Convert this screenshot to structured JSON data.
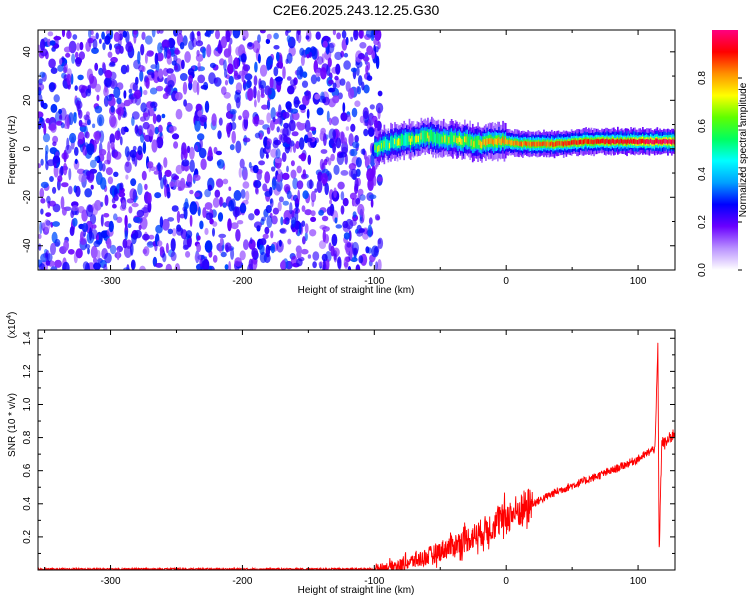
{
  "figure_title": "C2E6.2025.243.12.25.G30",
  "chart_data": [
    {
      "type": "heatmap",
      "title": "C2E6.2025.243.12.25.G30",
      "xlabel": "Height of straight line (km)",
      "ylabel": "Frequency (Hz)",
      "xlim": [
        -355,
        128
      ],
      "ylim": [
        -50,
        49
      ],
      "xticks": [
        -300,
        -200,
        -100,
        0,
        100
      ],
      "yticks": [
        -40,
        -20,
        0,
        20,
        40
      ],
      "grid": false,
      "regions": [
        {
          "x_range": [
            -355,
            -100
          ],
          "description": "random noise at low amplitude (0.1-0.3) over all frequencies"
        },
        {
          "x_range": [
            -100,
            128
          ],
          "description": "narrow band near 0-4 Hz, amplitude rising to ~0.9"
        }
      ],
      "band_center_hz": [
        {
          "x": -100,
          "y": 0
        },
        {
          "x": -90,
          "y": 2
        },
        {
          "x": -80,
          "y": 3
        },
        {
          "x": -70,
          "y": 4
        },
        {
          "x": -60,
          "y": 5
        },
        {
          "x": -50,
          "y": 4
        },
        {
          "x": -40,
          "y": 4
        },
        {
          "x": -30,
          "y": 3
        },
        {
          "x": -20,
          "y": 2
        },
        {
          "x": -10,
          "y": 3
        },
        {
          "x": 0,
          "y": 3
        },
        {
          "x": 10,
          "y": 2
        },
        {
          "x": 20,
          "y": 2
        },
        {
          "x": 40,
          "y": 2
        },
        {
          "x": 60,
          "y": 3
        },
        {
          "x": 80,
          "y": 3
        },
        {
          "x": 100,
          "y": 3
        },
        {
          "x": 128,
          "y": 3
        }
      ],
      "colorbar": {
        "label": "Normalized spectral amplitude",
        "range": [
          0,
          1
        ],
        "ticks": [
          0.0,
          0.2,
          0.4,
          0.6,
          0.8
        ],
        "colors": [
          "#ffffff",
          "#b991ff",
          "#6a00ff",
          "#0000ff",
          "#00a0ff",
          "#00ffff",
          "#00ff60",
          "#60ff00",
          "#ffff00",
          "#ff9000",
          "#ff0000",
          "#ff0080"
        ]
      }
    },
    {
      "type": "line",
      "xlabel": "Height of straight line (km)",
      "ylabel": "SNR (10 * v/v)",
      "y_multiplier": "(x10",
      "y_multiplier_exp": "4",
      "y_multiplier_close": ")",
      "xlim": [
        -355,
        128
      ],
      "ylim": [
        0,
        1.45
      ],
      "xticks": [
        -300,
        -200,
        -100,
        0,
        100
      ],
      "yticks": [
        0.2,
        0.4,
        0.6,
        0.8,
        1.0,
        1.2,
        1.4
      ],
      "grid": false,
      "color": "#ff0000",
      "x": [
        -355,
        -300,
        -250,
        -200,
        -150,
        -100,
        -80,
        -60,
        -40,
        -20,
        -10,
        0,
        20,
        40,
        60,
        80,
        100,
        110,
        113,
        115,
        116,
        118,
        120,
        128
      ],
      "y": [
        0.005,
        0.005,
        0.005,
        0.005,
        0.005,
        0.005,
        0.03,
        0.08,
        0.15,
        0.22,
        0.27,
        0.32,
        0.4,
        0.48,
        0.54,
        0.6,
        0.67,
        0.72,
        0.75,
        1.36,
        0.1,
        0.78,
        0.76,
        0.83
      ]
    }
  ],
  "spectrogram_xticklabels": [
    "-300",
    "-200",
    "-100",
    "0",
    "100"
  ],
  "spectrogram_yticklabels": [
    "40",
    "20",
    "0",
    "-20",
    "-40"
  ],
  "colorbar_ticklabels": [
    "0.0",
    "0.2",
    "0.4",
    "0.6",
    "0.8"
  ],
  "snr_xticklabels": [
    "-300",
    "-200",
    "-100",
    "0",
    "100"
  ],
  "snr_yticklabels": [
    "0.2",
    "0.4",
    "0.6",
    "0.8",
    "1.0",
    "1.2",
    "1.4"
  ]
}
